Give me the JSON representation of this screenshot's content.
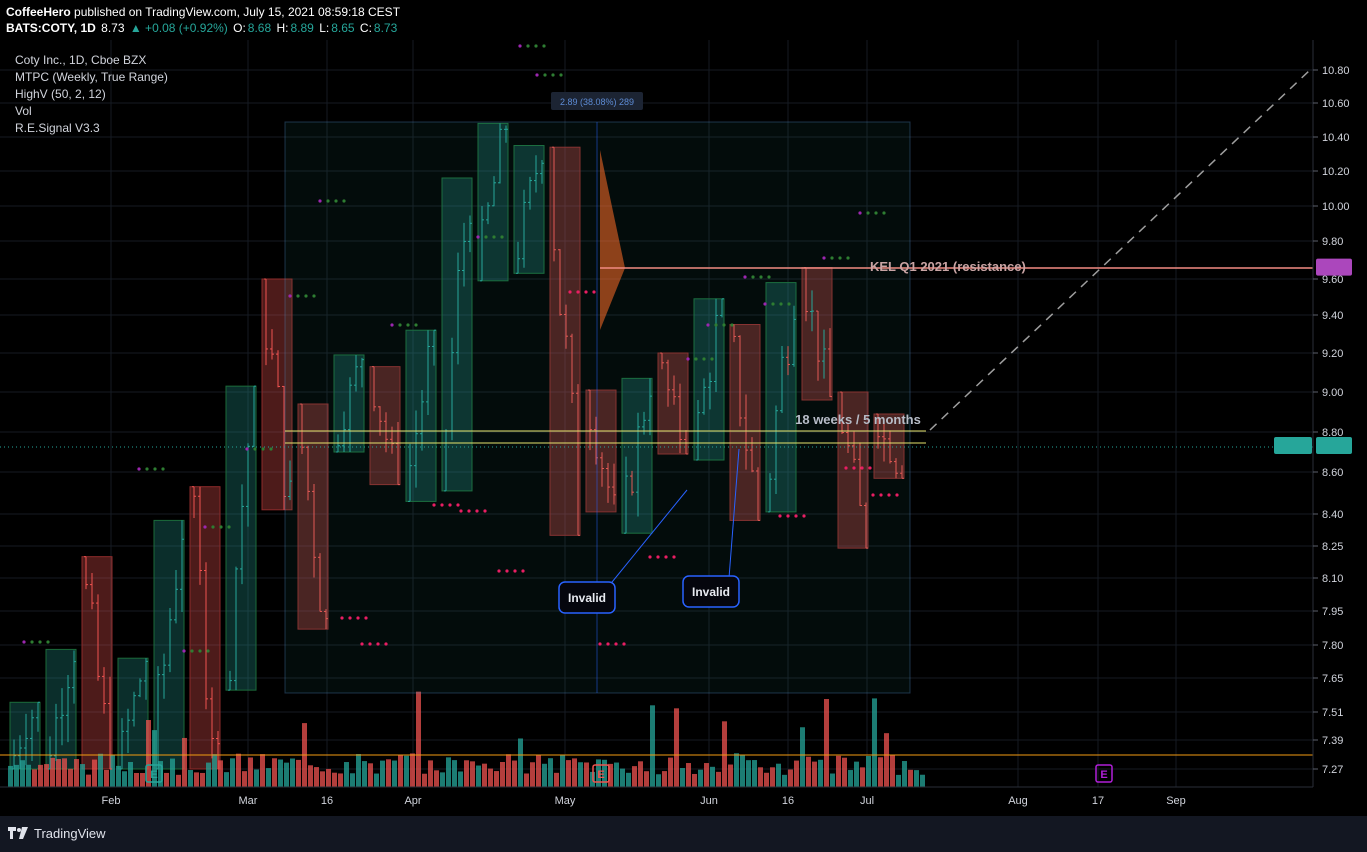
{
  "header": {
    "publisher": "CoffeeHero",
    "published_text": "published on TradingView.com, July 15, 2021 08:59:18 CEST",
    "symbol": "BATS:COTY, 1D",
    "last": "8.73",
    "change": "▲ +0.08 (+0.92%)",
    "o_label": "O:",
    "o_value": "8.68",
    "h_label": "H:",
    "h_value": "8.89",
    "l_label": "L:",
    "l_value": "8.65",
    "c_label": "C:",
    "c_value": "8.73"
  },
  "legend": {
    "title": "Coty Inc., 1D, Cboe BZX",
    "indicators": [
      "MTPC (Weekly, True Range)",
      "HighV (50, 2, 12)",
      "Vol",
      "R.E.Signal V3.3"
    ]
  },
  "footer": {
    "brand": "TradingView"
  },
  "chart_data": {
    "type": "candlestick",
    "title": "Coty Inc., 1D, Cboe BZX",
    "y_ticks": [
      10.8,
      10.6,
      10.4,
      10.2,
      10.0,
      9.8,
      9.6,
      9.4,
      9.2,
      9.0,
      8.8,
      8.6,
      8.4,
      8.25,
      8.1,
      7.95,
      7.8,
      7.65,
      7.51,
      7.39,
      7.27
    ],
    "y_tick_labels": [
      "10.80",
      "10.60",
      "10.40",
      "10.20",
      "10.00",
      "9.80",
      "9.60",
      "9.40",
      "9.20",
      "9.00",
      "8.80",
      "8.60",
      "8.40",
      "8.25",
      "8.10",
      "7.95",
      "7.80",
      "7.65",
      "7.51",
      "7.39",
      "7.27"
    ],
    "x_tick_labels": [
      "Feb",
      "Mar",
      "16",
      "Apr",
      "May",
      "Jun",
      "16",
      "Jul",
      "Aug",
      "17",
      "Sep"
    ],
    "current_price": {
      "symbol": "COTY",
      "value": "8.73"
    },
    "resistance": {
      "label": "KEL Q1 2021 (resistance)",
      "value": "9.66"
    },
    "measure_label": "2.89 (38.08%) 289",
    "duration_label": "18 weeks / 5 months",
    "annotations": [
      "Invalid",
      "Invalid"
    ],
    "weekly_boxes": [
      {
        "o": 7.27,
        "c": 7.55,
        "h": 7.55,
        "l": 7.27,
        "dir": "up"
      },
      {
        "o": 7.27,
        "c": 7.78,
        "h": 7.78,
        "l": 7.27,
        "dir": "up"
      },
      {
        "o": 8.2,
        "c": 7.27,
        "h": 8.2,
        "l": 7.27,
        "dir": "down"
      },
      {
        "o": 7.27,
        "c": 7.74,
        "h": 7.74,
        "l": 7.27,
        "dir": "up"
      },
      {
        "o": 7.27,
        "c": 8.37,
        "h": 8.37,
        "l": 7.27,
        "dir": "up"
      },
      {
        "o": 8.53,
        "c": 7.27,
        "h": 8.53,
        "l": 7.27,
        "dir": "down"
      },
      {
        "o": 7.6,
        "c": 9.03,
        "h": 9.03,
        "l": 7.6,
        "dir": "up"
      },
      {
        "o": 9.6,
        "c": 8.42,
        "h": 9.6,
        "l": 8.42,
        "dir": "down"
      },
      {
        "o": 8.94,
        "c": 7.87,
        "h": 8.94,
        "l": 7.87,
        "dir": "down"
      },
      {
        "o": 8.7,
        "c": 9.19,
        "h": 9.19,
        "l": 8.7,
        "dir": "up"
      },
      {
        "o": 9.13,
        "c": 8.54,
        "h": 9.13,
        "l": 8.54,
        "dir": "down"
      },
      {
        "o": 8.46,
        "c": 9.32,
        "h": 9.32,
        "l": 8.46,
        "dir": "up"
      },
      {
        "o": 8.51,
        "c": 10.16,
        "h": 10.16,
        "l": 8.51,
        "dir": "up"
      },
      {
        "o": 9.59,
        "c": 10.48,
        "h": 10.48,
        "l": 9.59,
        "dir": "up"
      },
      {
        "o": 9.63,
        "c": 10.35,
        "h": 10.35,
        "l": 9.63,
        "dir": "up"
      },
      {
        "o": 10.34,
        "c": 8.3,
        "h": 10.34,
        "l": 8.3,
        "dir": "down"
      },
      {
        "o": 9.01,
        "c": 8.41,
        "h": 9.01,
        "l": 8.41,
        "dir": "down"
      },
      {
        "o": 8.31,
        "c": 9.07,
        "h": 9.07,
        "l": 8.31,
        "dir": "up"
      },
      {
        "o": 9.2,
        "c": 8.69,
        "h": 9.2,
        "l": 8.69,
        "dir": "down"
      },
      {
        "o": 8.66,
        "c": 9.49,
        "h": 9.49,
        "l": 8.66,
        "dir": "up"
      },
      {
        "o": 9.35,
        "c": 8.37,
        "h": 9.35,
        "l": 8.37,
        "dir": "down"
      },
      {
        "o": 8.41,
        "c": 9.58,
        "h": 9.58,
        "l": 8.41,
        "dir": "up"
      },
      {
        "o": 9.66,
        "c": 8.96,
        "h": 9.66,
        "l": 8.96,
        "dir": "down"
      },
      {
        "o": 9.0,
        "c": 8.24,
        "h": 9.0,
        "l": 8.24,
        "dir": "down"
      },
      {
        "o": 8.89,
        "c": 8.57,
        "h": 8.89,
        "l": 8.57,
        "dir": "down"
      }
    ]
  }
}
